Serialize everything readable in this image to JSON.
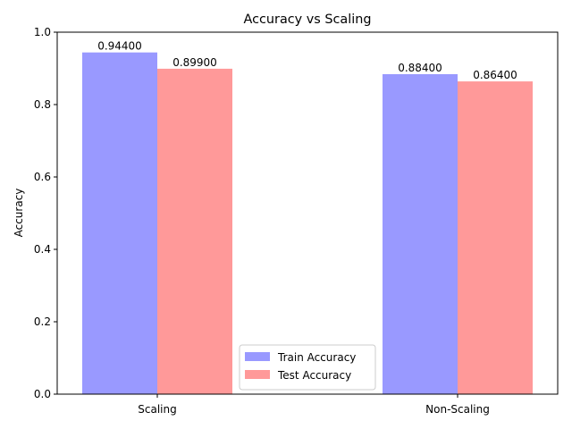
{
  "chart_data": {
    "type": "bar",
    "title": "Accuracy vs Scaling",
    "xlabel": "",
    "ylabel": "Accuracy",
    "categories": [
      "Scaling",
      "Non-Scaling"
    ],
    "ylim": [
      0,
      1.0
    ],
    "yticks": [
      "0.0",
      "0.2",
      "0.4",
      "0.6",
      "0.8",
      "1.0"
    ],
    "grid": false,
    "legend_position": "bottom-center",
    "series": [
      {
        "name": "Train Accuracy",
        "color": "#9999ff",
        "values": [
          0.944,
          0.884
        ],
        "labels": [
          "0.94400",
          "0.88400"
        ]
      },
      {
        "name": "Test Accuracy",
        "color": "#ff9999",
        "values": [
          0.899,
          0.864
        ],
        "labels": [
          "0.89900",
          "0.86400"
        ]
      }
    ]
  }
}
